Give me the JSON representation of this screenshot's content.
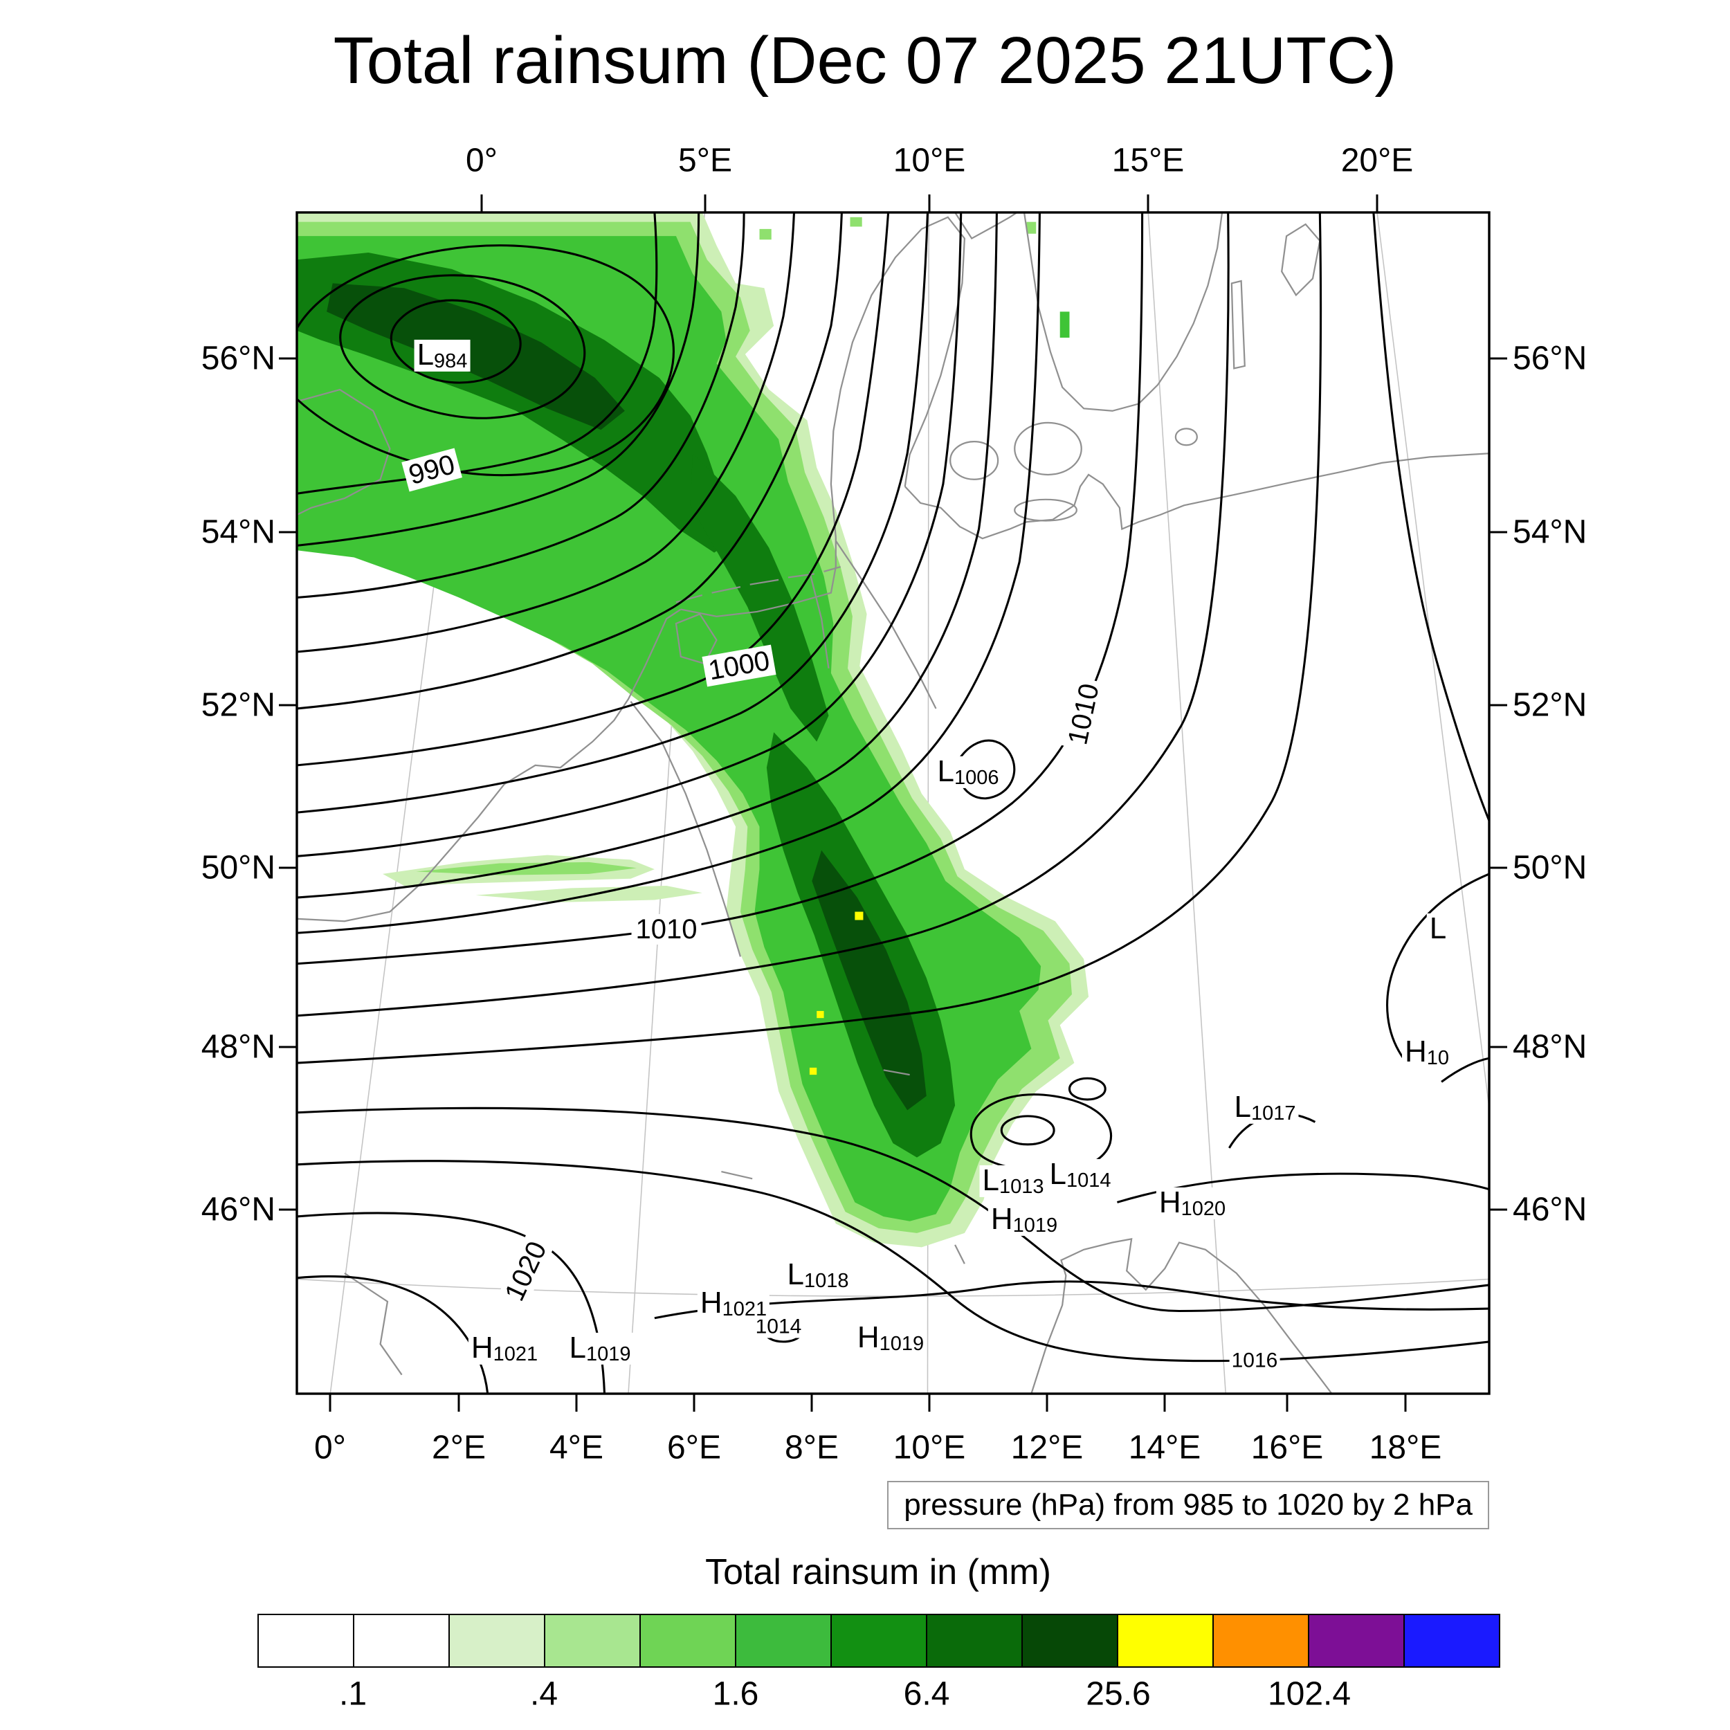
{
  "title": "Total rainsum (Dec 07 2025 21UTC)",
  "axes": {
    "top": [
      "0°",
      "5°E",
      "10°E",
      "15°E",
      "20°E"
    ],
    "bottom": [
      "0°",
      "2°E",
      "4°E",
      "6°E",
      "8°E",
      "10°E",
      "12°E",
      "14°E",
      "16°E",
      "18°E"
    ],
    "left": [
      "56°N",
      "54°N",
      "52°N",
      "50°N",
      "48°N",
      "46°N"
    ],
    "right": [
      "56°N",
      "54°N",
      "52°N",
      "50°N",
      "48°N",
      "46°N"
    ]
  },
  "pressure_caption": "pressure (hPa) from 985 to 1020 by 2 hPa",
  "colorbar": {
    "title": "Total rainsum in (mm)",
    "labels": [
      ".1",
      ".4",
      "1.6",
      "6.4",
      "25.6",
      "102.4"
    ],
    "colors": [
      "#ffffff",
      "#ffffff",
      "#d7f0c8",
      "#a8e690",
      "#6fd455",
      "#3dbb3d",
      "#129012",
      "#0a6b0a",
      "#064806",
      "#ffff00",
      "#ff9000",
      "#7d0f96",
      "#1a1aff"
    ]
  },
  "isobar_labels": {
    "c990": "990",
    "c1000": "1000",
    "c1010a": "1010",
    "c1010b": "1010",
    "c1020": "1020",
    "c1014": "1014",
    "c1016": "1016"
  },
  "pressure_centers": [
    {
      "letter": "L",
      "value": "984"
    },
    {
      "letter": "L",
      "value": "1006"
    },
    {
      "letter": "L",
      "value": ""
    },
    {
      "letter": "H",
      "value": "10"
    },
    {
      "letter": "L",
      "value": "1017"
    },
    {
      "letter": "H",
      "value": "1020"
    },
    {
      "letter": "L",
      "value": "1014"
    },
    {
      "letter": "L",
      "value": "1013"
    },
    {
      "letter": "H",
      "value": "1019"
    },
    {
      "letter": "L",
      "value": "1018"
    },
    {
      "letter": "H",
      "value": "1021"
    },
    {
      "letter": "H",
      "value": "1021"
    },
    {
      "letter": "L",
      "value": "1019"
    },
    {
      "letter": "H",
      "value": "1019"
    }
  ],
  "chart_data": {
    "type": "heatmap",
    "title": "Total rainsum (Dec 07 2025 21UTC)",
    "variable": "Total rainsum in (mm)",
    "overlay_contours": "pressure (hPa) from 985 to 1020 by 2 hPa",
    "lon_ticks_top": [
      "0°",
      "5°E",
      "10°E",
      "15°E",
      "20°E"
    ],
    "lon_ticks_bottom": [
      "0°",
      "2°E",
      "4°E",
      "6°E",
      "8°E",
      "10°E",
      "12°E",
      "14°E",
      "16°E",
      "18°E"
    ],
    "lat_ticks": [
      "56°N",
      "54°N",
      "52°N",
      "50°N",
      "48°N",
      "46°N"
    ],
    "colorbar_labeled_levels_mm": [
      0.1,
      0.4,
      1.6,
      6.4,
      25.6,
      102.4
    ],
    "colorbar_colors": [
      "#ffffff",
      "#ffffff",
      "#d7f0c8",
      "#a8e690",
      "#6fd455",
      "#3dbb3d",
      "#129012",
      "#0a6b0a",
      "#064806",
      "#ffff00",
      "#ff9000",
      "#7d0f96",
      "#1a1aff"
    ],
    "isobar_values_labeled": [
      990,
      1000,
      1010,
      1010,
      1014,
      1016,
      1020
    ],
    "pressure_systems": [
      {
        "letter": "L",
        "value": 984
      },
      {
        "letter": "L",
        "value": 1006
      },
      {
        "letter": "L",
        "value": 1017
      },
      {
        "letter": "H",
        "value": 1020
      },
      {
        "letter": "L",
        "value": 1014
      },
      {
        "letter": "L",
        "value": 1013
      },
      {
        "letter": "H",
        "value": 1019
      },
      {
        "letter": "L",
        "value": 1018
      },
      {
        "letter": "H",
        "value": 1021
      },
      {
        "letter": "H",
        "value": 1021
      },
      {
        "letter": "L",
        "value": 1019
      },
      {
        "letter": "H",
        "value": 1019
      }
    ],
    "pattern_summary": "Deep 984 hPa low over the North Sea near 1E/56N; broad NW-SE rain band (cores above 6.4 mm, local spots above 25.6 mm) from eastern England across the Netherlands and Germany toward the Alps; mostly dry east of ~12E and over France; weak highs/lows 1013-1021 hPa across the Alps and southeast."
  }
}
